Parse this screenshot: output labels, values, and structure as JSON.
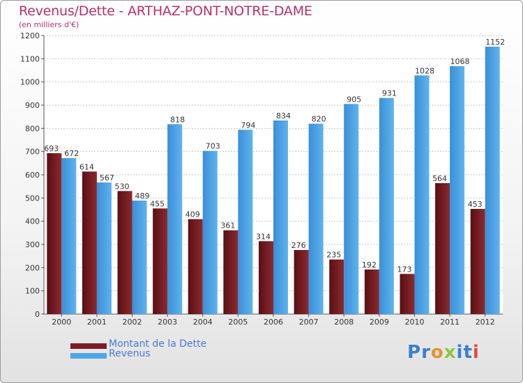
{
  "chart_data": {
    "type": "bar",
    "title": "Revenus/Dette - ARTHAZ-PONT-NOTRE-DAME",
    "subtitle": "(en milliers d'€)",
    "categories": [
      "2000",
      "2001",
      "2002",
      "2003",
      "2004",
      "2005",
      "2006",
      "2007",
      "2008",
      "2009",
      "2010",
      "2011",
      "2012"
    ],
    "series": [
      {
        "name": "Montant de la Dette",
        "color": "#7a1e22",
        "values": [
          693,
          614,
          530,
          455,
          409,
          361,
          314,
          276,
          235,
          192,
          173,
          564,
          453
        ]
      },
      {
        "name": "Revenus",
        "color": "#4ea6e6",
        "values": [
          672,
          567,
          489,
          818,
          703,
          794,
          834,
          820,
          905,
          931,
          1028,
          1068,
          1152
        ]
      }
    ],
    "ylim": [
      0,
      1200
    ],
    "yticks": [
      0,
      100,
      200,
      300,
      400,
      500,
      600,
      700,
      800,
      900,
      1000,
      1100,
      1200
    ],
    "grid": true,
    "legend": "bottom-left"
  },
  "logo": {
    "letters": [
      {
        "ch": "P",
        "color": "#3a7fd0"
      },
      {
        "ch": "r",
        "color": "#3a7fd0"
      },
      {
        "ch": "o",
        "color": "#e8902a"
      },
      {
        "ch": "x",
        "color": "#8cc63f"
      },
      {
        "ch": "i",
        "color": "#3a7fd0"
      },
      {
        "ch": "t",
        "color": "#3a7fd0"
      },
      {
        "ch": "i",
        "color": "#e24a3b"
      }
    ]
  }
}
